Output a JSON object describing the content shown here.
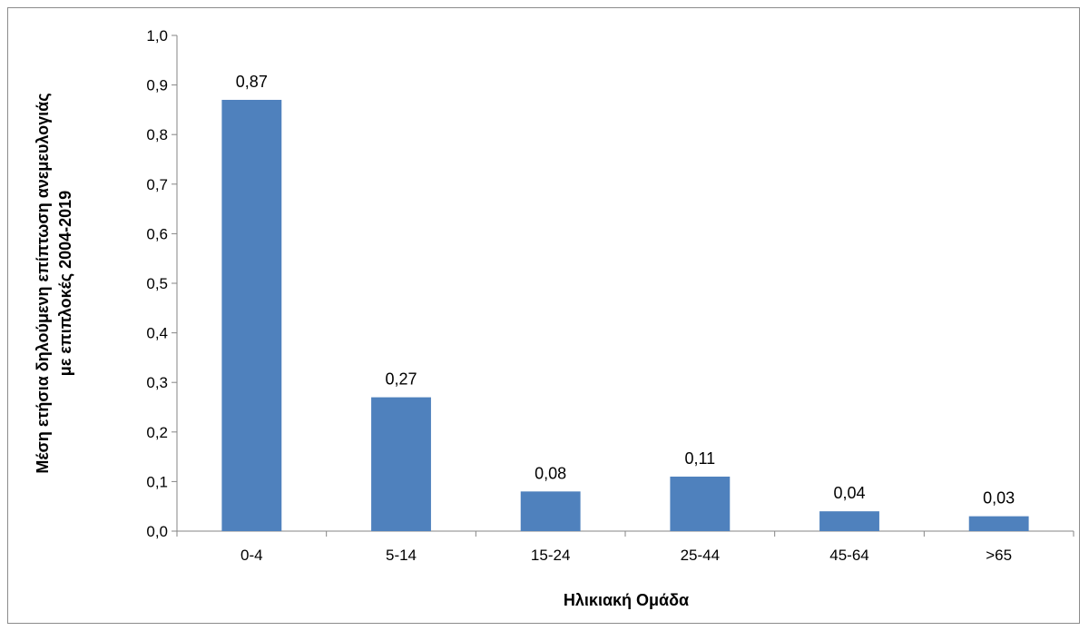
{
  "chart_data": {
    "type": "bar",
    "categories": [
      "0-4",
      "5-14",
      "15-24",
      "25-44",
      "45-64",
      ">65"
    ],
    "values": [
      0.87,
      0.27,
      0.08,
      0.11,
      0.04,
      0.03
    ],
    "data_labels": [
      "0,87",
      "0,27",
      "0,08",
      "0,11",
      "0,04",
      "0,03"
    ],
    "title": "",
    "xlabel": "Ηλικιακή  Ομάδα",
    "ylabel_line1": "Μέση ετήσια  δηλούμενη  επίπτωση ανεμευλογιάς",
    "ylabel_line2": "με επιπλοκές 2004-2019",
    "ylim": [
      0,
      1.0
    ],
    "yticks": [
      0,
      0.1,
      0.2,
      0.3,
      0.4,
      0.5,
      0.6,
      0.7,
      0.8,
      0.9,
      1.0
    ],
    "ytick_labels": [
      "0,0",
      "0,1",
      "0,2",
      "0,3",
      "0,4",
      "0,5",
      "0,6",
      "0,7",
      "0,8",
      "0,9",
      "1,0"
    ],
    "grid": false,
    "legend": "none",
    "bar_color": "#4f81bd"
  }
}
